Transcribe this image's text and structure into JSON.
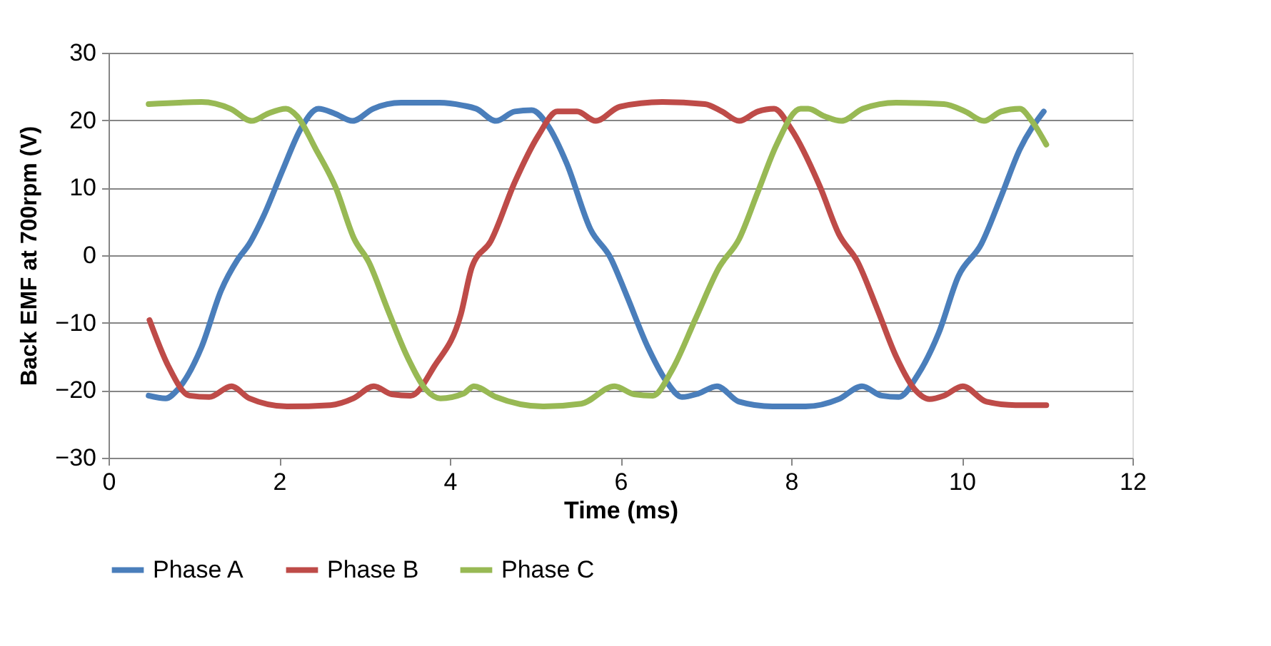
{
  "chart_data": {
    "type": "line",
    "xlabel": "Time (ms)",
    "ylabel": "Back EMF at 700rpm  (V)",
    "xlim": [
      0,
      12
    ],
    "xticks": [
      0,
      2,
      4,
      6,
      8,
      10,
      12
    ],
    "ylim": [
      -30,
      30
    ],
    "yticks": [
      -30,
      -20,
      -10,
      0,
      10,
      20,
      30
    ],
    "grid": "y",
    "legend": "bottom",
    "marker": "none",
    "line_style": "solid",
    "series": [
      {
        "name": "Phase A",
        "color": "#4a7ebb",
        "x": [
          0.47,
          0.67,
          0.81,
          1.09,
          1.32,
          1.51,
          1.65,
          1.82,
          2.04,
          2.26,
          2.46,
          2.65,
          2.86,
          3.1,
          3.43,
          3.88,
          4.15,
          4.31,
          4.54,
          4.76,
          4.96,
          5.15,
          5.37,
          5.65,
          5.88,
          6.07,
          6.32,
          6.55,
          6.72,
          6.91,
          7.13,
          7.39,
          7.78,
          8.17,
          8.56,
          8.83,
          9.06,
          9.26,
          9.48,
          9.73,
          9.96,
          10.23,
          10.46,
          10.68,
          10.96
        ],
        "values": [
          -20.8,
          -21.2,
          -19.9,
          -13.6,
          -5.2,
          -0.7,
          1.7,
          5.9,
          12.6,
          18.9,
          21.7,
          21,
          19.9,
          21.7,
          22.6,
          22.6,
          22.2,
          21.7,
          19.9,
          21.3,
          21.5,
          19.2,
          13.6,
          3.8,
          -0.3,
          -5.9,
          -13.6,
          -18.9,
          -21,
          -20.5,
          -19.4,
          -21.7,
          -22.4,
          -22.4,
          -21.3,
          -19.4,
          -20.8,
          -21,
          -17.8,
          -11.5,
          -3.1,
          1.7,
          8.7,
          15.7,
          21.3
        ]
      },
      {
        "name": "Phase B",
        "color": "#be4b48",
        "x": [
          0.48,
          0.7,
          0.95,
          1.18,
          1.44,
          1.65,
          2.09,
          2.6,
          2.87,
          3.11,
          3.32,
          3.54,
          3.82,
          4.13,
          4.26,
          4.48,
          4.76,
          5.04,
          5.26,
          5.49,
          5.71,
          5.99,
          6.49,
          6.99,
          7.19,
          7.39,
          7.61,
          7.8,
          8.0,
          8.34,
          8.56,
          8.78,
          9.01,
          9.23,
          9.45,
          9.62,
          9.79,
          10.01,
          10.29,
          10.63,
          10.99
        ],
        "values": [
          -9.6,
          -16.4,
          -20.8,
          -21,
          -19.4,
          -21.2,
          -22.4,
          -22.2,
          -21.2,
          -19.4,
          -20.6,
          -20.8,
          -16.4,
          -8.7,
          -1.7,
          2.1,
          10.8,
          17.8,
          21.3,
          21.3,
          19.9,
          22,
          22.7,
          22.4,
          21.3,
          19.9,
          21.3,
          21.7,
          18.7,
          10.1,
          3.1,
          -1,
          -8,
          -15,
          -19.9,
          -21.3,
          -20.8,
          -19.4,
          -21.7,
          -22.2,
          -22.2
        ]
      },
      {
        "name": "Phase C",
        "color": "#98b954",
        "x": [
          0.47,
          1.09,
          1.43,
          1.68,
          1.87,
          2.08,
          2.21,
          2.43,
          2.66,
          2.88,
          3.05,
          3.27,
          3.5,
          3.72,
          3.89,
          4.16,
          4.28,
          4.54,
          5.09,
          5.54,
          5.93,
          6.16,
          6.38,
          6.6,
          6.88,
          7.16,
          7.39,
          7.61,
          7.83,
          8.11,
          8.2,
          8.39,
          8.59,
          8.84,
          9.23,
          9.79,
          10.04,
          10.26,
          10.46,
          10.68,
          10.82,
          10.99
        ],
        "values": [
          22.4,
          22.7,
          21.7,
          19.9,
          21,
          21.7,
          20.6,
          15.7,
          10.1,
          2.4,
          -1,
          -8,
          -15,
          -19.9,
          -21.2,
          -20.5,
          -19.4,
          -21,
          -22.4,
          -22,
          -19.4,
          -20.6,
          -20.8,
          -17.1,
          -9.4,
          -1.7,
          2.4,
          9.4,
          16.4,
          21.7,
          21.7,
          20.6,
          19.9,
          21.7,
          22.6,
          22.4,
          21.3,
          19.9,
          21.3,
          21.7,
          19.9,
          16.4
        ]
      }
    ]
  }
}
